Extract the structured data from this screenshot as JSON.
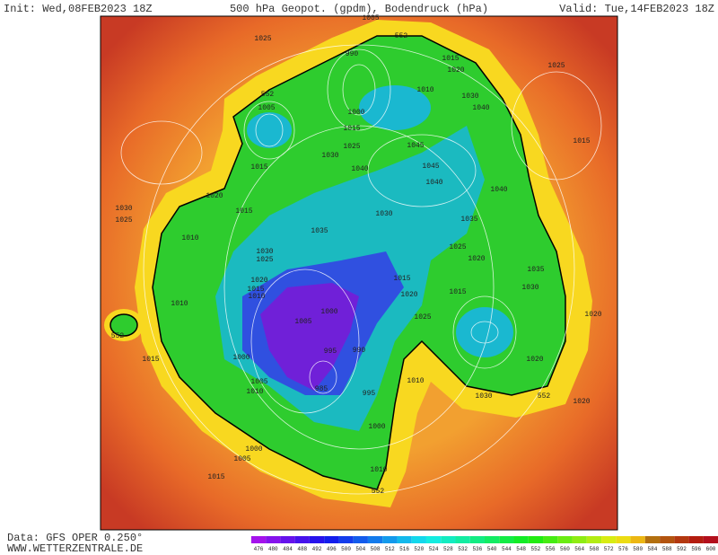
{
  "header": {
    "init": "Init: Wed,08FEB2023 18Z",
    "title": "500 hPa Geopot. (gpdm), Bodendruck (hPa)",
    "valid": "Valid: Tue,14FEB2023 18Z"
  },
  "map": {
    "labels": [
      1005,
      552,
      1025,
      990,
      1015,
      1020,
      1025,
      552,
      1005,
      1000,
      1010,
      1030,
      1040,
      1015,
      1025,
      1030,
      1045,
      1045,
      1040,
      1040,
      1015,
      1015,
      1040,
      1020,
      1015,
      1030,
      1025,
      1010,
      1030,
      1035,
      1035,
      1025,
      1020,
      1030,
      1025,
      1035,
      1010,
      1020,
      1015,
      1010,
      1015,
      1020,
      1015,
      1030,
      1005,
      1000,
      1025,
      1020,
      552,
      995,
      990,
      1015,
      1000,
      1005,
      1010,
      1020,
      985,
      995,
      1010,
      1030,
      552,
      1020,
      1000,
      1000,
      1005,
      1015,
      1010,
      552
    ]
  },
  "footer": {
    "source": "Data: GFS OPER 0.250°",
    "site": "WWW.WETTERZENTRALE.DE"
  },
  "colorbar": {
    "labels": [
      476,
      480,
      484,
      488,
      492,
      496,
      500,
      504,
      508,
      512,
      516,
      520,
      524,
      528,
      532,
      536,
      540,
      544,
      548,
      552,
      556,
      560,
      564,
      568,
      572,
      576,
      580,
      584,
      588,
      592,
      596,
      600
    ]
  }
}
